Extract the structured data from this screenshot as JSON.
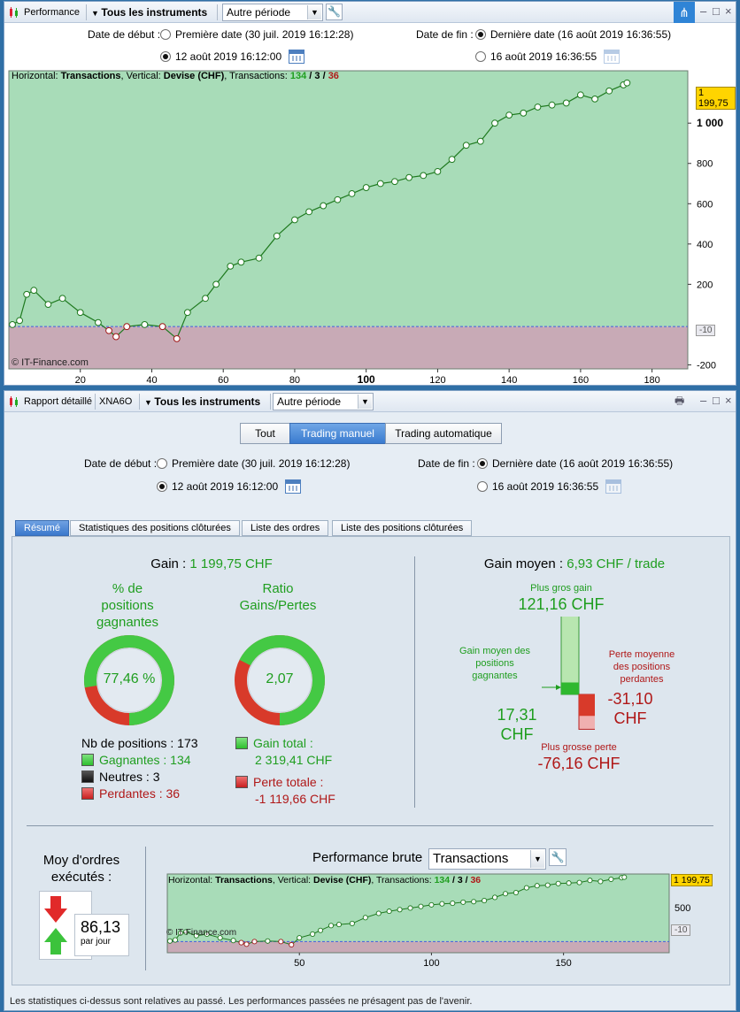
{
  "top_window": {
    "title": "Performance",
    "instrument_label": "Tous les instruments",
    "period_select": "Autre période",
    "start_label": "Date de début :",
    "start_opt1": "Première date (30 juil. 2019 16:12:28)",
    "start_opt2": "12 août 2019 16:12:00",
    "end_label": "Date de fin :",
    "end_opt1": "Dernière date (16 août 2019 16:36:55)",
    "end_opt2": "16 août 2019 16:36:55"
  },
  "main_chart": {
    "header_prefix": "Horizontal: ",
    "header_h": "Transactions",
    "header_mid": ", Vertical: ",
    "header_v": "Devise (CHF)",
    "header_tx": ", Transactions: ",
    "win_count": "134",
    "neutral_count": "3",
    "loss_count": "36",
    "last_value_badge": "1 199,75",
    "zero_badge": "-10",
    "watermark": "© IT-Finance.com",
    "y_ticks": [
      "-200",
      "200",
      "400",
      "600",
      "800",
      "1 000"
    ],
    "x_ticks": [
      "20",
      "40",
      "60",
      "80",
      "100",
      "120",
      "140",
      "160",
      "180"
    ]
  },
  "chart_data": {
    "type": "line",
    "x": [
      1,
      3,
      5,
      7,
      11,
      15,
      20,
      25,
      28,
      30,
      33,
      38,
      43,
      47,
      50,
      55,
      58,
      62,
      65,
      70,
      75,
      80,
      84,
      88,
      92,
      96,
      100,
      104,
      108,
      112,
      116,
      120,
      124,
      128,
      132,
      136,
      140,
      144,
      148,
      152,
      156,
      160,
      164,
      168,
      172,
      173
    ],
    "values": [
      0,
      20,
      150,
      170,
      100,
      130,
      60,
      10,
      -30,
      -60,
      -10,
      0,
      -10,
      -70,
      60,
      130,
      200,
      290,
      310,
      330,
      440,
      520,
      560,
      590,
      620,
      650,
      680,
      700,
      710,
      730,
      740,
      760,
      820,
      890,
      910,
      1000,
      1040,
      1050,
      1080,
      1090,
      1100,
      1140,
      1120,
      1160,
      1190,
      1199.75
    ],
    "xlim": [
      0,
      190
    ],
    "ylim": [
      -220,
      1260
    ],
    "xlabel": "Transactions",
    "ylabel": "Devise (CHF)",
    "grid": false
  },
  "bottom_window": {
    "title": "Rapport détaillé",
    "ticker": "XNA6O",
    "instrument_label": "Tous les instruments",
    "period_select": "Autre période",
    "seg_all": "Tout",
    "seg_manual": "Trading manuel",
    "seg_auto": "Trading automatique",
    "start_label": "Date de début :",
    "start_opt1": "Première date (30 juil. 2019 16:12:28)",
    "start_opt2": "12 août 2019 16:12:00",
    "end_label": "Date de fin :",
    "end_opt1": "Dernière date (16 août 2019 16:36:55)",
    "end_opt2": "16 août 2019 16:36:55",
    "tabs": [
      "Résumé",
      "Statistiques des positions clôturées",
      "Liste des ordres",
      "Liste des positions clôturées"
    ]
  },
  "summary": {
    "gain_label": "Gain :",
    "gain_value": "1 199,75 CHF",
    "pct_title_1": "% de",
    "pct_title_2": "positions",
    "pct_title_3": "gagnantes",
    "pct_value": "77,46 %",
    "pct_fraction": 0.7746,
    "ratio_title_1": "Ratio",
    "ratio_title_2": "Gains/Pertes",
    "ratio_value": "2,07",
    "ratio_fraction": 0.674,
    "nb_positions": "Nb de positions : 173",
    "winners": "Gagnantes : 134",
    "neutral": "Neutres : 3",
    "losers": "Perdantes : 36",
    "gain_total_label": "Gain total :",
    "gain_total_value": "2 319,41 CHF",
    "loss_total_label": "Perte totale :",
    "loss_total_value": "-1 119,66 CHF",
    "avg_gain_label": "Gain moyen :",
    "avg_gain_value": "6,93 CHF / trade",
    "best_gain_label": "Plus gros gain",
    "best_gain_value": "121,16 CHF",
    "avg_win_label_1": "Gain moyen des",
    "avg_win_label_2": "positions",
    "avg_win_label_3": "gagnantes",
    "avg_win_value_1": "17,31",
    "avg_win_value_2": "CHF",
    "avg_loss_label_1": "Perte moyenne",
    "avg_loss_label_2": "des positions",
    "avg_loss_label_3": "perdantes",
    "avg_loss_value_1": "-31,10",
    "avg_loss_value_2": "CHF",
    "worst_loss_label": "Plus grosse perte",
    "worst_loss_value": "-76,16 CHF",
    "orders_label_1": "Moy d'ordres",
    "orders_label_2": "exécutés :",
    "orders_value": "86,13",
    "orders_unit": "par jour",
    "perf_label": "Performance brute",
    "perf_select": "Transactions"
  },
  "mini_chart": {
    "header_prefix": "Horizontal: ",
    "header_h": "Transactions",
    "header_mid": ", Vertical: ",
    "header_v": "Devise (CHF)",
    "header_tx": ", Transactions: ",
    "win_count": "134",
    "neutral_count": "3",
    "loss_count": "36",
    "last_value_badge": "1 199,75",
    "y_tick": "500",
    "zero_badge": "-10",
    "watermark": "© IT-Finance.com",
    "x_ticks": [
      "50",
      "100",
      "150"
    ]
  },
  "footer_note": "Les statistiques ci-dessus sont relatives au passé. Les performances passées ne présagent pas de l'avenir."
}
